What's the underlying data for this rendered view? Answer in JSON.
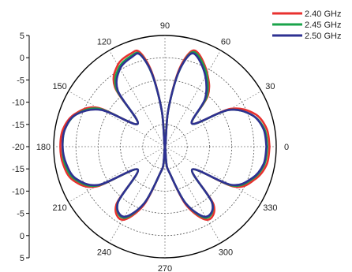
{
  "chart_data": {
    "type": "polar-line",
    "title": "",
    "angle_unit": "deg",
    "angle_ticks": [
      "0",
      "30",
      "60",
      "90",
      "120",
      "150",
      "180",
      "210",
      "240",
      "270",
      "300",
      "330"
    ],
    "radial_axis": {
      "range": [
        -20,
        5
      ],
      "upper_ticks": [
        "5",
        "0",
        "-5",
        "-10",
        "-15",
        "-20"
      ],
      "lower_ticks": [
        "-15",
        "-10",
        "-5",
        "0",
        "5"
      ],
      "label": ""
    },
    "rings": [
      -15,
      -10,
      -5,
      0,
      5
    ],
    "grid": true,
    "legend_position": "top-right",
    "series": [
      {
        "name": "2.40 GHz",
        "color": "#e8312f",
        "points": [
          [
            0,
            3.5
          ],
          [
            10,
            3.2
          ],
          [
            20,
            1.5
          ],
          [
            30,
            -3.0
          ],
          [
            40,
            -12.0
          ],
          [
            50,
            -5.0
          ],
          [
            60,
            -1.0
          ],
          [
            70,
            2.2
          ],
          [
            75,
            2.0
          ],
          [
            80,
            -3.0
          ],
          [
            85,
            -12.0
          ],
          [
            90,
            -20.0
          ],
          [
            95,
            -12.0
          ],
          [
            100,
            -3.0
          ],
          [
            105,
            2.0
          ],
          [
            110,
            2.3
          ],
          [
            120,
            1.2
          ],
          [
            130,
            -2.5
          ],
          [
            140,
            -12.0
          ],
          [
            150,
            -2.5
          ],
          [
            160,
            1.5
          ],
          [
            170,
            3.2
          ],
          [
            180,
            3.5
          ],
          [
            190,
            3.2
          ],
          [
            200,
            2.0
          ],
          [
            210,
            -2.0
          ],
          [
            220,
            -12.0
          ],
          [
            230,
            -3.0
          ],
          [
            240,
            -1.0
          ],
          [
            250,
            -6.0
          ],
          [
            260,
            -14.0
          ],
          [
            265,
            -16.0
          ],
          [
            270,
            -20.0
          ],
          [
            275,
            -16.0
          ],
          [
            280,
            -14.0
          ],
          [
            290,
            -6.0
          ],
          [
            300,
            -1.0
          ],
          [
            310,
            -3.0
          ],
          [
            320,
            -12.0
          ],
          [
            330,
            -2.0
          ],
          [
            340,
            1.5
          ],
          [
            350,
            3.2
          ],
          [
            360,
            3.5
          ]
        ]
      },
      {
        "name": "2.45 GHz",
        "color": "#1aa34a",
        "points": [
          [
            0,
            3.0
          ],
          [
            10,
            2.7
          ],
          [
            20,
            0.8
          ],
          [
            30,
            -3.5
          ],
          [
            40,
            -12.0
          ],
          [
            50,
            -5.5
          ],
          [
            60,
            -1.3
          ],
          [
            70,
            1.8
          ],
          [
            75,
            1.6
          ],
          [
            80,
            -3.5
          ],
          [
            85,
            -12.0
          ],
          [
            90,
            -20.0
          ],
          [
            95,
            -12.0
          ],
          [
            100,
            -3.5
          ],
          [
            105,
            1.5
          ],
          [
            110,
            1.8
          ],
          [
            120,
            0.6
          ],
          [
            130,
            -3.0
          ],
          [
            140,
            -12.0
          ],
          [
            150,
            -3.0
          ],
          [
            160,
            1.2
          ],
          [
            170,
            2.8
          ],
          [
            180,
            3.0
          ],
          [
            190,
            2.8
          ],
          [
            200,
            1.5
          ],
          [
            210,
            -2.5
          ],
          [
            220,
            -12.0
          ],
          [
            230,
            -3.5
          ],
          [
            240,
            -1.5
          ],
          [
            250,
            -6.5
          ],
          [
            260,
            -14.0
          ],
          [
            265,
            -16.0
          ],
          [
            270,
            -20.0
          ],
          [
            275,
            -16.0
          ],
          [
            280,
            -14.0
          ],
          [
            290,
            -6.5
          ],
          [
            300,
            -1.5
          ],
          [
            310,
            -3.5
          ],
          [
            320,
            -12.0
          ],
          [
            330,
            -2.5
          ],
          [
            340,
            1.0
          ],
          [
            350,
            2.7
          ],
          [
            360,
            3.0
          ]
        ]
      },
      {
        "name": "2.50 GHz",
        "color": "#2e3192",
        "points": [
          [
            0,
            2.8
          ],
          [
            10,
            2.5
          ],
          [
            20,
            0.8
          ],
          [
            30,
            -3.5
          ],
          [
            40,
            -12.0
          ],
          [
            50,
            -6.0
          ],
          [
            60,
            -1.8
          ],
          [
            70,
            1.4
          ],
          [
            75,
            1.4
          ],
          [
            80,
            -3.5
          ],
          [
            85,
            -12.0
          ],
          [
            90,
            -20.0
          ],
          [
            95,
            -12.0
          ],
          [
            100,
            -3.5
          ],
          [
            105,
            1.4
          ],
          [
            110,
            1.5
          ],
          [
            120,
            0.2
          ],
          [
            130,
            -3.5
          ],
          [
            140,
            -12.0
          ],
          [
            150,
            -3.5
          ],
          [
            160,
            1.2
          ],
          [
            170,
            2.8
          ],
          [
            180,
            3.0
          ],
          [
            190,
            2.5
          ],
          [
            200,
            1.2
          ],
          [
            210,
            -2.8
          ],
          [
            220,
            -12.0
          ],
          [
            230,
            -3.5
          ],
          [
            240,
            -1.8
          ],
          [
            250,
            -6.5
          ],
          [
            260,
            -14.0
          ],
          [
            265,
            -16.0
          ],
          [
            270,
            -20.0
          ],
          [
            275,
            -16.0
          ],
          [
            280,
            -14.0
          ],
          [
            290,
            -6.5
          ],
          [
            300,
            -1.8
          ],
          [
            310,
            -3.5
          ],
          [
            320,
            -12.0
          ],
          [
            330,
            -2.8
          ],
          [
            340,
            0.8
          ],
          [
            350,
            2.5
          ],
          [
            360,
            2.8
          ]
        ]
      }
    ]
  }
}
